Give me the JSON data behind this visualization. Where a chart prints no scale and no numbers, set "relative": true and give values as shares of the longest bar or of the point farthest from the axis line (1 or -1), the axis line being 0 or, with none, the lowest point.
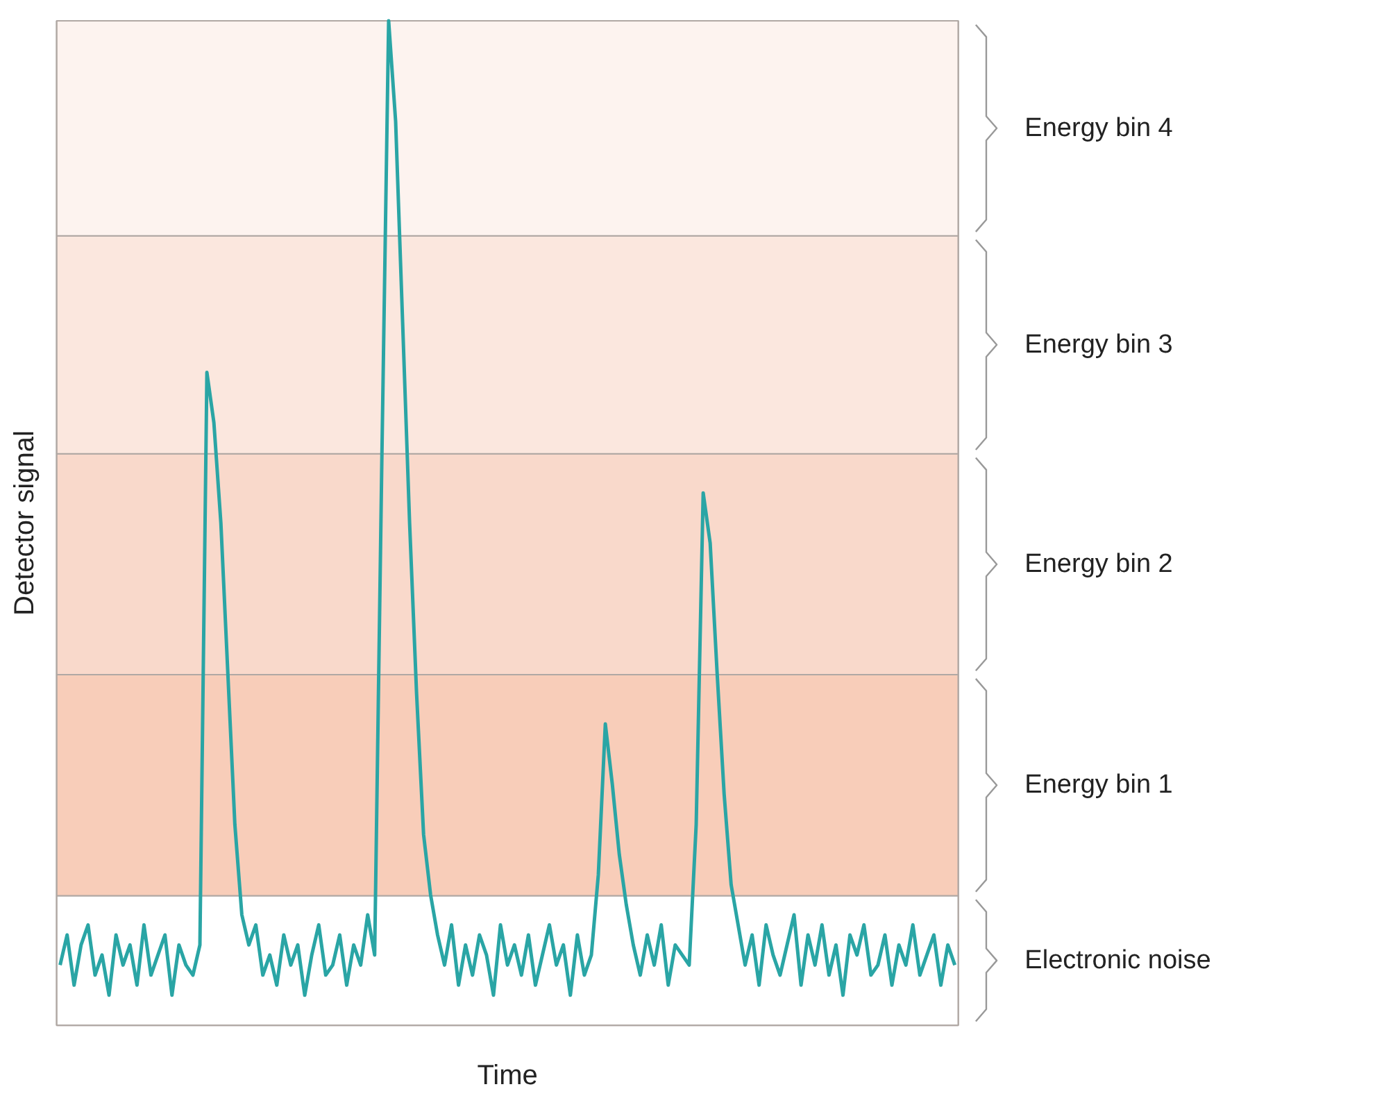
{
  "chart_data": {
    "type": "line",
    "relative": true,
    "xlabel": "Time",
    "ylabel": "Detector signal",
    "grid": false,
    "categories": [
      null,
      null,
      null,
      null,
      null,
      null,
      null,
      null,
      null,
      null,
      null,
      null,
      null,
      null,
      null,
      null,
      null,
      null,
      null,
      null,
      null,
      null,
      null,
      null,
      null,
      null,
      null,
      null,
      null,
      null,
      null,
      null,
      null,
      null,
      null,
      null,
      null,
      null,
      null,
      null,
      null,
      null,
      null,
      null,
      null,
      null,
      null,
      null,
      null,
      null,
      null,
      null,
      null,
      null,
      null,
      null,
      null,
      null,
      null,
      null,
      null,
      null,
      null,
      null,
      null,
      null,
      null,
      null,
      null,
      null,
      null,
      null,
      null,
      null,
      null,
      null,
      null,
      null,
      null,
      null,
      null,
      null,
      null,
      null,
      null,
      null,
      null,
      null,
      null,
      null,
      null,
      null,
      null,
      null,
      null,
      null,
      null,
      null,
      null,
      null,
      null,
      null,
      null,
      null,
      null,
      null,
      null,
      null,
      null,
      null,
      null,
      null,
      null,
      null,
      null,
      null,
      null,
      null,
      null,
      null,
      null,
      null,
      null,
      null,
      null,
      null,
      null,
      null,
      null
    ],
    "series": [
      {
        "color": "#2aa5a5",
        "values": [
          0.06,
          0.09,
          0.04,
          0.08,
          0.1,
          0.05,
          0.07,
          0.03,
          0.09,
          0.06,
          0.08,
          0.04,
          0.1,
          0.05,
          0.07,
          0.09,
          0.03,
          0.08,
          0.06,
          0.05,
          0.08,
          0.65,
          0.6,
          0.5,
          0.35,
          0.2,
          0.11,
          0.08,
          0.1,
          0.05,
          0.07,
          0.04,
          0.09,
          0.06,
          0.08,
          0.03,
          0.07,
          0.1,
          0.05,
          0.06,
          0.09,
          0.04,
          0.08,
          0.06,
          0.11,
          0.07,
          0.55,
          1.0,
          0.9,
          0.7,
          0.5,
          0.33,
          0.19,
          0.13,
          0.09,
          0.06,
          0.1,
          0.04,
          0.08,
          0.05,
          0.09,
          0.07,
          0.03,
          0.1,
          0.06,
          0.08,
          0.05,
          0.09,
          0.04,
          0.07,
          0.1,
          0.06,
          0.08,
          0.03,
          0.09,
          0.05,
          0.07,
          0.15,
          0.3,
          0.24,
          0.17,
          0.12,
          0.08,
          0.05,
          0.09,
          0.06,
          0.1,
          0.04,
          0.08,
          0.07,
          0.06,
          0.2,
          0.53,
          0.48,
          0.35,
          0.23,
          0.14,
          0.1,
          0.06,
          0.09,
          0.04,
          0.1,
          0.07,
          0.05,
          0.08,
          0.11,
          0.04,
          0.09,
          0.06,
          0.1,
          0.05,
          0.08,
          0.03,
          0.09,
          0.07,
          0.1,
          0.05,
          0.06,
          0.09,
          0.04,
          0.08,
          0.06,
          0.1,
          0.05,
          0.07,
          0.09,
          0.04,
          0.08,
          0.06
        ]
      }
    ],
    "bands": [
      {
        "axis": "y",
        "from": 0,
        "to": 0.129,
        "label": "Electronic noise",
        "color": "#ffffff"
      },
      {
        "axis": "y",
        "from": 0.129,
        "to": 0.349,
        "label": "Energy bin 1",
        "color": "#f8cdb9"
      },
      {
        "axis": "y",
        "from": 0.349,
        "to": 0.569,
        "label": "Energy bin 2",
        "color": "#f9d9cb"
      },
      {
        "axis": "y",
        "from": 0.569,
        "to": 0.786,
        "label": "Energy bin 3",
        "color": "#fbe7de"
      },
      {
        "axis": "y",
        "from": 0.786,
        "to": 1.0,
        "label": "Energy bin 4",
        "color": "#fdf3ef"
      }
    ]
  }
}
